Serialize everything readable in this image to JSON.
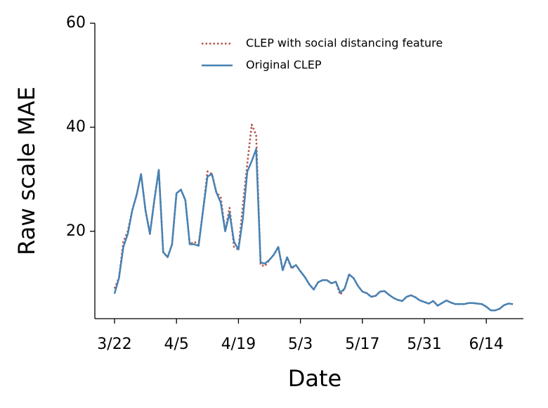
{
  "chart_data": {
    "type": "line",
    "x": [
      "3/22",
      "3/23",
      "3/24",
      "3/25",
      "3/26",
      "3/27",
      "3/28",
      "3/29",
      "3/30",
      "3/31",
      "4/1",
      "4/2",
      "4/3",
      "4/4",
      "4/5",
      "4/6",
      "4/7",
      "4/8",
      "4/9",
      "4/10",
      "4/11",
      "4/12",
      "4/13",
      "4/14",
      "4/15",
      "4/16",
      "4/17",
      "4/18",
      "4/19",
      "4/20",
      "4/21",
      "4/22",
      "4/23",
      "4/24",
      "4/25",
      "4/26",
      "4/27",
      "4/28",
      "4/29",
      "4/30",
      "5/1",
      "5/2",
      "5/3",
      "5/4",
      "5/5",
      "5/6",
      "5/7",
      "5/8",
      "5/9",
      "5/10",
      "5/11",
      "5/12",
      "5/13",
      "5/14",
      "5/15",
      "5/16",
      "5/17",
      "5/18",
      "5/19",
      "5/20",
      "5/21",
      "5/22",
      "5/23",
      "5/24",
      "5/25",
      "5/26",
      "5/27",
      "5/28",
      "5/29",
      "5/30",
      "5/31",
      "6/1",
      "6/2",
      "6/3",
      "6/4",
      "6/5",
      "6/6",
      "6/7",
      "6/8",
      "6/9",
      "6/10",
      "6/11",
      "6/12",
      "6/13",
      "6/14",
      "6/15",
      "6/16",
      "6/17",
      "6/18",
      "6/19",
      "6/20"
    ],
    "series": [
      {
        "name": "CLEP with social distancing feature",
        "color": "#b5524a",
        "style": "dotted",
        "values": [
          9,
          11,
          18,
          20,
          24,
          27,
          31,
          24,
          19.5,
          26,
          31.8,
          16,
          15,
          17.5,
          27.3,
          28,
          26,
          17.5,
          18,
          17.5,
          24,
          31.5,
          31,
          27.5,
          26.5,
          20,
          24.5,
          17,
          16.5,
          25,
          33,
          40.5,
          38.5,
          13.5,
          13.3,
          14.5,
          15.5,
          17,
          12.5,
          15,
          12.8,
          13.5,
          12.3,
          11.2,
          9.8,
          8.8,
          10.2,
          10.6,
          10.6,
          10,
          10.3,
          7.8,
          9,
          11.7,
          11,
          9.5,
          8.4,
          8.1,
          7.4,
          7.6,
          8.4,
          8.5,
          7.8,
          7.2,
          6.8,
          6.6,
          7.4,
          7.7,
          7.3,
          6.7,
          6.4,
          6.1,
          6.6,
          5.7,
          6.2,
          6.7,
          6.3,
          6,
          6,
          6,
          6.2,
          6.2,
          6.1,
          6,
          5.5,
          4.8,
          4.8,
          5.1,
          5.8,
          6.1,
          6
        ]
      },
      {
        "name": "Original CLEP",
        "color": "#4682b4",
        "style": "solid",
        "values": [
          8,
          11,
          17,
          19.5,
          24,
          27,
          31,
          24,
          19.5,
          26,
          31.8,
          16,
          15,
          17.5,
          27.3,
          28,
          26,
          17.5,
          17.5,
          17.2,
          24,
          30.5,
          31,
          27.5,
          25.5,
          20,
          23.5,
          18,
          16.5,
          22.5,
          31.5,
          33.5,
          35.8,
          14,
          13.8,
          14.5,
          15.5,
          17,
          12.5,
          15,
          13,
          13.5,
          12.3,
          11.2,
          9.8,
          8.8,
          10.2,
          10.6,
          10.6,
          10,
          10.3,
          8.2,
          9,
          11.7,
          11,
          9.5,
          8.4,
          8.1,
          7.4,
          7.6,
          8.4,
          8.5,
          7.8,
          7.2,
          6.8,
          6.6,
          7.4,
          7.7,
          7.3,
          6.7,
          6.4,
          6.1,
          6.6,
          5.7,
          6.2,
          6.7,
          6.3,
          6,
          6,
          6,
          6.2,
          6.2,
          6.1,
          6,
          5.5,
          4.8,
          4.8,
          5.1,
          5.8,
          6.1,
          6
        ]
      }
    ],
    "xlabel": "Date",
    "ylabel": "Raw scale MAE",
    "ylim": [
      3.2,
      60
    ],
    "yticks": [
      20,
      40,
      60
    ],
    "xticks": [
      "3/22",
      "4/5",
      "4/19",
      "5/3",
      "5/17",
      "5/31",
      "6/14"
    ],
    "legend": "upper right",
    "grid": false
  }
}
